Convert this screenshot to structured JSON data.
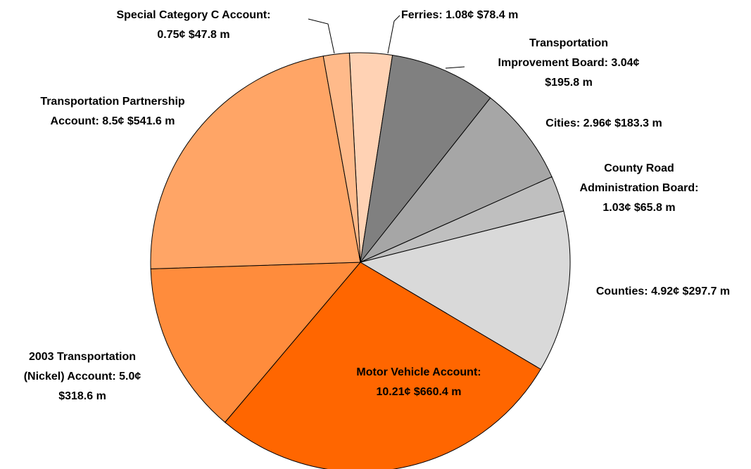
{
  "chart_data": {
    "type": "pie",
    "labels": [
      [
        "Ferries: 1.08¢ $78.4 m"
      ],
      [
        "Transportation",
        "Improvement Board: 3.04¢",
        "$195.8 m"
      ],
      [
        "Cities: 2.96¢ $183.3 m"
      ],
      [
        "County Road",
        "Administration Board:",
        "1.03¢ $65.8 m"
      ],
      [
        "Counties: 4.92¢ $297.7 m"
      ],
      [
        "Motor Vehicle Account:",
        "10.21¢ $660.4 m"
      ],
      [
        "2003 Transportation",
        "(Nickel) Account: 5.0¢",
        "$318.6 m"
      ],
      [
        "Transportation Partnership",
        "Account: 8.5¢ $541.6 m"
      ],
      [
        "Special Category C Account:",
        "0.75¢ $47.8 m"
      ]
    ],
    "values": [
      78.4,
      195.8,
      183.3,
      65.8,
      297.7,
      660.4,
      318.6,
      541.6,
      47.8
    ],
    "colors": [
      "#FFD2B4",
      "#808080",
      "#A6A6A6",
      "#BFBFBF",
      "#D9D9D9",
      "#FF6600",
      "#FF8C3C",
      "#FFA566",
      "#FFBA8A"
    ]
  }
}
